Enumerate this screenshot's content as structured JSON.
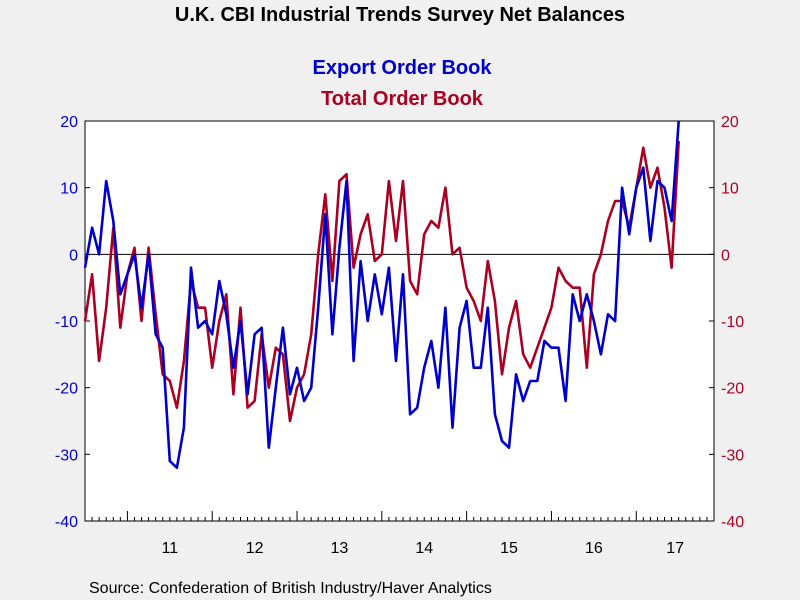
{
  "chart_data": {
    "type": "line",
    "title": "U.K. CBI Industrial Trends Survey Net Balances",
    "source": "Source:  Confederation of British Industry/Haver Analytics",
    "x_tick_labels": [
      "11",
      "12",
      "13",
      "14",
      "15",
      "16",
      "17"
    ],
    "y_left": {
      "min": -40,
      "max": 20,
      "ticks": [
        "20",
        "10",
        "0",
        "-10",
        "-20",
        "-30",
        "-40"
      ]
    },
    "y_right": {
      "min": -40,
      "max": 20,
      "ticks": [
        "20",
        "10",
        "0",
        "-10",
        "-20",
        "-30",
        "-40"
      ]
    },
    "zero_line": true,
    "x_start": "2010-07",
    "x_end": "2017-12",
    "colors": {
      "export": "#0000cc",
      "total": "#aa0022",
      "axis_left": "#0000cc",
      "axis_right": "#aa0022"
    },
    "series": [
      {
        "name": "Export Order Book",
        "color": "#0000cc",
        "start": "2010-07",
        "values": [
          -2,
          4,
          0,
          11,
          5,
          -6,
          -3,
          0,
          -8,
          0,
          -12,
          -14,
          -31,
          -32,
          -26,
          -2,
          -11,
          -10,
          -12,
          -4,
          -9,
          -17,
          -10,
          -21,
          -12,
          -11,
          -29,
          -20,
          -11,
          -21,
          -17,
          -22,
          -20,
          -8,
          6,
          -12,
          1,
          11,
          -16,
          -1,
          -10,
          -3,
          -9,
          -2,
          -16,
          -3,
          -24,
          -23,
          -17,
          -13,
          -20,
          -8,
          -26,
          -11,
          -7,
          -17,
          -17,
          -8,
          -24,
          -28,
          -29,
          -18,
          -22,
          -19,
          -19,
          -13,
          -14,
          -14,
          -22,
          -6,
          -10,
          -6,
          -10,
          -15,
          -9,
          -10,
          10,
          3,
          10,
          13,
          2,
          11,
          10,
          5,
          20
        ]
      },
      {
        "name": "Total Order Book",
        "color": "#aa0022",
        "start": "2010-07",
        "values": [
          -10,
          -3,
          -16,
          -8,
          4,
          -11,
          -3,
          1,
          -10,
          1,
          -9,
          -18,
          -19,
          -23,
          -16,
          -4,
          -8,
          -8,
          -17,
          -10,
          -6,
          -21,
          -8,
          -23,
          -22,
          -12,
          -20,
          -14,
          -15,
          -25,
          -20,
          -18,
          -12,
          0,
          9,
          -4,
          11,
          12,
          -2,
          3,
          6,
          -1,
          0,
          11,
          2,
          11,
          -4,
          -6,
          3,
          5,
          4,
          10,
          0,
          1,
          -5,
          -7,
          -10,
          -1,
          -7,
          -18,
          -11,
          -7,
          -15,
          -17,
          -14,
          -11,
          -8,
          -2,
          -4,
          -5,
          -5,
          -17,
          -3,
          0,
          5,
          8,
          8,
          4,
          10,
          16,
          10,
          13,
          7,
          -2,
          17
        ]
      }
    ]
  }
}
